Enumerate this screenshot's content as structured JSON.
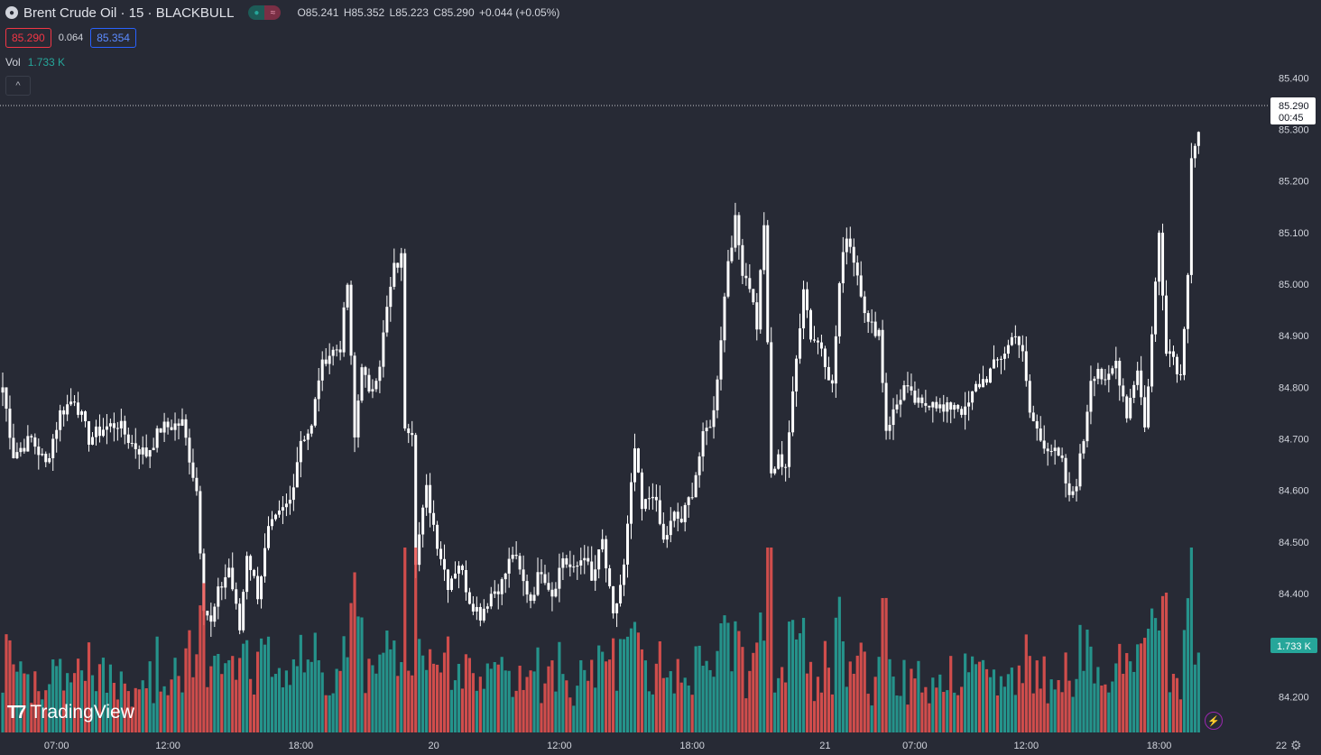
{
  "header": {
    "symbol_title": "Brent Crude Oil · 15 · BLACKBULL",
    "symbol_icon": "oil-drop-icon",
    "ohlc": {
      "open": "O85.241",
      "high": "H85.352",
      "low": "L85.223",
      "close": "C85.290",
      "change": "+0.044 (+0.05%)"
    },
    "bid": "85.290",
    "spread": "0.064",
    "ask": "85.354",
    "volume_label": "Vol",
    "volume_value": "1.733 K"
  },
  "price_labels": {
    "last_price": "85.290",
    "countdown": "00:45",
    "volume_last": "1.733 K"
  },
  "branding": {
    "logo_text": "TradingView"
  },
  "colors": {
    "background": "#272a35",
    "candle": "#ffffff",
    "volume_up": "#26a69a",
    "volume_down": "#ef5350",
    "text": "#d1d4dc"
  },
  "chart_data": {
    "type": "candlestick",
    "interval": "15",
    "ylim": [
      84.12,
      85.46
    ],
    "y_ticks": [
      "85.400",
      "85.300",
      "85.200",
      "85.100",
      "85.000",
      "84.900",
      "84.800",
      "84.700",
      "84.600",
      "84.500",
      "84.400",
      "84.300",
      "84.200"
    ],
    "x_ticks": [
      {
        "label": "07:00",
        "bar": 15
      },
      {
        "label": "12:00",
        "bar": 46
      },
      {
        "label": "18:00",
        "bar": 83
      },
      {
        "label": "20",
        "bar": 120
      },
      {
        "label": "12:00",
        "bar": 155
      },
      {
        "label": "18:00",
        "bar": 192
      },
      {
        "label": "21",
        "bar": 229
      },
      {
        "label": "07:00",
        "bar": 254
      },
      {
        "label": "12:00",
        "bar": 285
      },
      {
        "label": "18:00",
        "bar": 322
      },
      {
        "label": "22",
        "bar": 359
      }
    ],
    "waypoints": [
      [
        0,
        84.8
      ],
      [
        3,
        84.67
      ],
      [
        8,
        84.7
      ],
      [
        12,
        84.65
      ],
      [
        16,
        84.75
      ],
      [
        20,
        84.78
      ],
      [
        24,
        84.7
      ],
      [
        28,
        84.72
      ],
      [
        32,
        84.73
      ],
      [
        36,
        84.69
      ],
      [
        40,
        84.67
      ],
      [
        44,
        84.72
      ],
      [
        50,
        84.73
      ],
      [
        54,
        84.6
      ],
      [
        56,
        84.38
      ],
      [
        58,
        84.34
      ],
      [
        60,
        84.4
      ],
      [
        63,
        84.45
      ],
      [
        66,
        84.33
      ],
      [
        68,
        84.48
      ],
      [
        71,
        84.4
      ],
      [
        74,
        84.52
      ],
      [
        77,
        84.55
      ],
      [
        80,
        84.58
      ],
      [
        83,
        84.7
      ],
      [
        86,
        84.72
      ],
      [
        88,
        84.82
      ],
      [
        90,
        84.86
      ],
      [
        94,
        84.88
      ],
      [
        96,
        85.0
      ],
      [
        98,
        84.7
      ],
      [
        100,
        84.85
      ],
      [
        102,
        84.78
      ],
      [
        105,
        84.85
      ],
      [
        107,
        84.95
      ],
      [
        109,
        85.03
      ],
      [
        111,
        85.05
      ],
      [
        112,
        84.73
      ],
      [
        114,
        84.72
      ],
      [
        115,
        84.47
      ],
      [
        118,
        84.6
      ],
      [
        121,
        84.5
      ],
      [
        124,
        84.42
      ],
      [
        127,
        84.46
      ],
      [
        130,
        84.39
      ],
      [
        133,
        84.36
      ],
      [
        136,
        84.4
      ],
      [
        139,
        84.42
      ],
      [
        142,
        84.48
      ],
      [
        145,
        84.42
      ],
      [
        147,
        84.39
      ],
      [
        150,
        84.45
      ],
      [
        153,
        84.4
      ],
      [
        156,
        84.47
      ],
      [
        159,
        84.44
      ],
      [
        162,
        84.48
      ],
      [
        164,
        84.42
      ],
      [
        167,
        84.5
      ],
      [
        170,
        84.35
      ],
      [
        173,
        84.45
      ],
      [
        176,
        84.68
      ],
      [
        178,
        84.56
      ],
      [
        181,
        84.6
      ],
      [
        184,
        84.5
      ],
      [
        187,
        84.55
      ],
      [
        189,
        84.54
      ],
      [
        192,
        84.6
      ],
      [
        195,
        84.7
      ],
      [
        198,
        84.75
      ],
      [
        200,
        84.9
      ],
      [
        202,
        85.05
      ],
      [
        204,
        85.12
      ],
      [
        206,
        85.03
      ],
      [
        208,
        85.0
      ],
      [
        210,
        84.92
      ],
      [
        212,
        85.12
      ],
      [
        214,
        84.63
      ],
      [
        216,
        84.66
      ],
      [
        218,
        84.65
      ],
      [
        220,
        84.78
      ],
      [
        223,
        85.0
      ],
      [
        225,
        84.9
      ],
      [
        228,
        84.88
      ],
      [
        231,
        84.8
      ],
      [
        233,
        85.0
      ],
      [
        235,
        85.1
      ],
      [
        237,
        85.05
      ],
      [
        239,
        84.99
      ],
      [
        241,
        84.92
      ],
      [
        244,
        84.91
      ],
      [
        246,
        84.72
      ],
      [
        248,
        84.75
      ],
      [
        251,
        84.8
      ],
      [
        253,
        84.78
      ],
      [
        256,
        84.76
      ],
      [
        259,
        84.78
      ],
      [
        262,
        84.75
      ],
      [
        265,
        84.77
      ],
      [
        268,
        84.75
      ],
      [
        271,
        84.8
      ],
      [
        274,
        84.82
      ],
      [
        277,
        84.85
      ],
      [
        280,
        84.88
      ],
      [
        282,
        84.91
      ],
      [
        284,
        84.86
      ],
      [
        286,
        84.75
      ],
      [
        289,
        84.7
      ],
      [
        292,
        84.68
      ],
      [
        295,
        84.65
      ],
      [
        297,
        84.58
      ],
      [
        299,
        84.62
      ],
      [
        301,
        84.7
      ],
      [
        303,
        84.82
      ],
      [
        305,
        84.84
      ],
      [
        307,
        84.8
      ],
      [
        310,
        84.85
      ],
      [
        313,
        84.75
      ],
      [
        316,
        84.84
      ],
      [
        318,
        84.72
      ],
      [
        320,
        84.9
      ],
      [
        322,
        85.1
      ],
      [
        324,
        84.88
      ],
      [
        326,
        84.86
      ],
      [
        328,
        84.82
      ],
      [
        330,
        85.03
      ],
      [
        331,
        85.25
      ],
      [
        333,
        85.29
      ]
    ],
    "volume_ylim": [
      0,
      220
    ]
  }
}
